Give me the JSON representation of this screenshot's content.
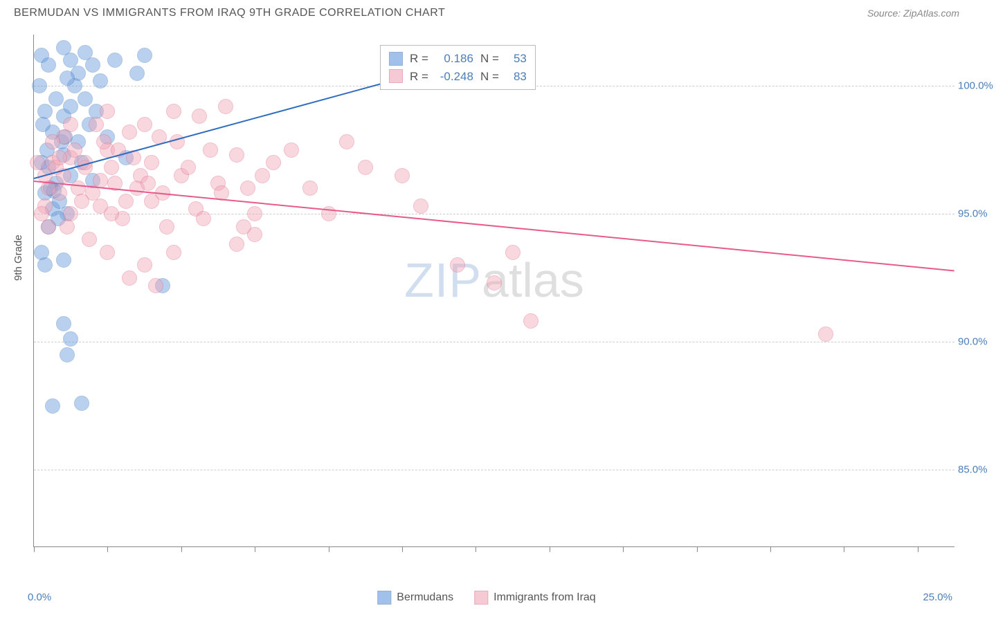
{
  "header": {
    "title": "BERMUDAN VS IMMIGRANTS FROM IRAQ 9TH GRADE CORRELATION CHART",
    "source": "Source: ZipAtlas.com"
  },
  "chart": {
    "type": "scatter",
    "yaxis_label": "9th Grade",
    "xlim": [
      0,
      25
    ],
    "ylim": [
      82,
      102
    ],
    "xticks": [
      0,
      2,
      4,
      6,
      8,
      10,
      12,
      14,
      16,
      18,
      20,
      22,
      24
    ],
    "xtick_labels": {
      "0": "0.0%",
      "25": "25.0%"
    },
    "yticks": [
      85,
      90,
      95,
      100
    ],
    "ytick_labels": [
      "85.0%",
      "90.0%",
      "95.0%",
      "100.0%"
    ],
    "grid_color": "#cccccc",
    "background_color": "#ffffff",
    "point_radius": 10,
    "point_opacity": 0.45,
    "series": [
      {
        "name": "Bermudans",
        "color": "#6699dd",
        "border": "#4a7ebb",
        "R": "0.186",
        "N": "53",
        "trend": {
          "x1": 0,
          "y1": 96.4,
          "x2": 13.0,
          "y2": 101.5,
          "color": "#2e6cc0"
        },
        "points": [
          [
            0.2,
            101.2
          ],
          [
            0.4,
            100.8
          ],
          [
            0.8,
            101.5
          ],
          [
            1.0,
            101.0
          ],
          [
            1.2,
            100.5
          ],
          [
            1.4,
            101.3
          ],
          [
            1.8,
            100.2
          ],
          [
            2.2,
            101.0
          ],
          [
            2.8,
            100.5
          ],
          [
            3.0,
            101.2
          ],
          [
            0.3,
            99.0
          ],
          [
            0.5,
            98.2
          ],
          [
            0.6,
            99.5
          ],
          [
            0.8,
            98.8
          ],
          [
            1.0,
            99.2
          ],
          [
            1.2,
            97.8
          ],
          [
            1.5,
            98.5
          ],
          [
            0.2,
            97.0
          ],
          [
            0.4,
            96.8
          ],
          [
            0.6,
            96.2
          ],
          [
            0.8,
            97.3
          ],
          [
            1.0,
            96.5
          ],
          [
            1.3,
            97.0
          ],
          [
            1.6,
            96.3
          ],
          [
            0.3,
            95.8
          ],
          [
            0.5,
            95.2
          ],
          [
            0.7,
            95.5
          ],
          [
            0.9,
            95.0
          ],
          [
            0.4,
            94.5
          ],
          [
            0.2,
            93.5
          ],
          [
            0.3,
            93.0
          ],
          [
            0.8,
            93.2
          ],
          [
            3.5,
            92.2
          ],
          [
            0.8,
            90.7
          ],
          [
            1.0,
            90.1
          ],
          [
            0.9,
            89.5
          ],
          [
            0.5,
            87.5
          ],
          [
            1.3,
            87.6
          ],
          [
            2.0,
            98.0
          ],
          [
            2.5,
            97.2
          ],
          [
            0.15,
            100.0
          ],
          [
            0.25,
            98.5
          ],
          [
            0.35,
            97.5
          ],
          [
            0.45,
            96.0
          ],
          [
            0.55,
            95.9
          ],
          [
            0.65,
            94.8
          ],
          [
            0.75,
            97.8
          ],
          [
            0.85,
            98.0
          ],
          [
            1.6,
            100.8
          ],
          [
            1.1,
            100.0
          ],
          [
            1.4,
            99.5
          ],
          [
            0.9,
            100.3
          ],
          [
            1.7,
            99.0
          ]
        ]
      },
      {
        "name": "Immigrants from Iraq",
        "color": "#f0a8b8",
        "border": "#e07090",
        "R": "-0.248",
        "N": "83",
        "trend": {
          "x1": 0,
          "y1": 96.3,
          "x2": 25.0,
          "y2": 92.8,
          "color": "#e85a8a"
        },
        "points": [
          [
            0.5,
            97.0
          ],
          [
            0.8,
            96.5
          ],
          [
            1.0,
            97.2
          ],
          [
            1.2,
            96.0
          ],
          [
            1.4,
            96.8
          ],
          [
            1.6,
            95.8
          ],
          [
            1.8,
            96.3
          ],
          [
            2.0,
            97.5
          ],
          [
            2.2,
            96.2
          ],
          [
            2.5,
            95.5
          ],
          [
            2.8,
            96.0
          ],
          [
            3.0,
            98.5
          ],
          [
            3.2,
            97.0
          ],
          [
            3.5,
            95.8
          ],
          [
            3.8,
            99.0
          ],
          [
            4.0,
            96.5
          ],
          [
            4.5,
            98.8
          ],
          [
            5.0,
            96.2
          ],
          [
            5.5,
            97.3
          ],
          [
            6.0,
            95.0
          ],
          [
            5.2,
            99.2
          ],
          [
            4.8,
            97.5
          ],
          [
            4.2,
            96.8
          ],
          [
            3.6,
            94.5
          ],
          [
            2.4,
            94.8
          ],
          [
            2.0,
            93.5
          ],
          [
            2.6,
            92.5
          ],
          [
            3.0,
            93.0
          ],
          [
            3.3,
            92.2
          ],
          [
            2.1,
            95.0
          ],
          [
            1.5,
            94.0
          ],
          [
            1.0,
            95.0
          ],
          [
            1.3,
            95.5
          ],
          [
            0.7,
            95.8
          ],
          [
            0.9,
            94.5
          ],
          [
            0.4,
            96.0
          ],
          [
            0.6,
            96.8
          ],
          [
            0.3,
            95.3
          ],
          [
            7.0,
            97.5
          ],
          [
            8.0,
            95.0
          ],
          [
            10.0,
            96.5
          ],
          [
            10.5,
            95.3
          ],
          [
            11.5,
            93.0
          ],
          [
            12.5,
            92.3
          ],
          [
            13.0,
            93.5
          ],
          [
            13.5,
            90.8
          ],
          [
            21.5,
            90.3
          ],
          [
            5.5,
            93.8
          ],
          [
            6.0,
            94.2
          ],
          [
            6.5,
            97.0
          ],
          [
            5.8,
            96.0
          ],
          [
            4.4,
            95.2
          ],
          [
            3.8,
            93.5
          ],
          [
            3.2,
            95.5
          ],
          [
            2.9,
            96.5
          ],
          [
            2.3,
            97.5
          ],
          [
            1.9,
            97.8
          ],
          [
            1.7,
            98.5
          ],
          [
            1.1,
            97.5
          ],
          [
            0.8,
            98.0
          ],
          [
            0.5,
            97.8
          ],
          [
            1.4,
            97.0
          ],
          [
            1.8,
            95.3
          ],
          [
            2.1,
            96.8
          ],
          [
            2.7,
            97.2
          ],
          [
            3.1,
            96.2
          ],
          [
            3.9,
            97.8
          ],
          [
            4.6,
            94.8
          ],
          [
            5.1,
            95.8
          ],
          [
            5.7,
            94.5
          ],
          [
            6.2,
            96.5
          ],
          [
            7.5,
            96.0
          ],
          [
            8.5,
            97.8
          ],
          [
            9.0,
            96.8
          ],
          [
            3.4,
            98.0
          ],
          [
            2.6,
            98.2
          ],
          [
            2.0,
            99.0
          ],
          [
            1.0,
            98.5
          ],
          [
            0.7,
            97.2
          ],
          [
            0.4,
            94.5
          ],
          [
            0.2,
            95.0
          ],
          [
            0.3,
            96.5
          ],
          [
            0.1,
            97.0
          ]
        ]
      }
    ],
    "watermark": {
      "zip": "ZIP",
      "atlas": "atlas"
    }
  },
  "stats_legend": {
    "R_label": "R =",
    "N_label": "N ="
  }
}
